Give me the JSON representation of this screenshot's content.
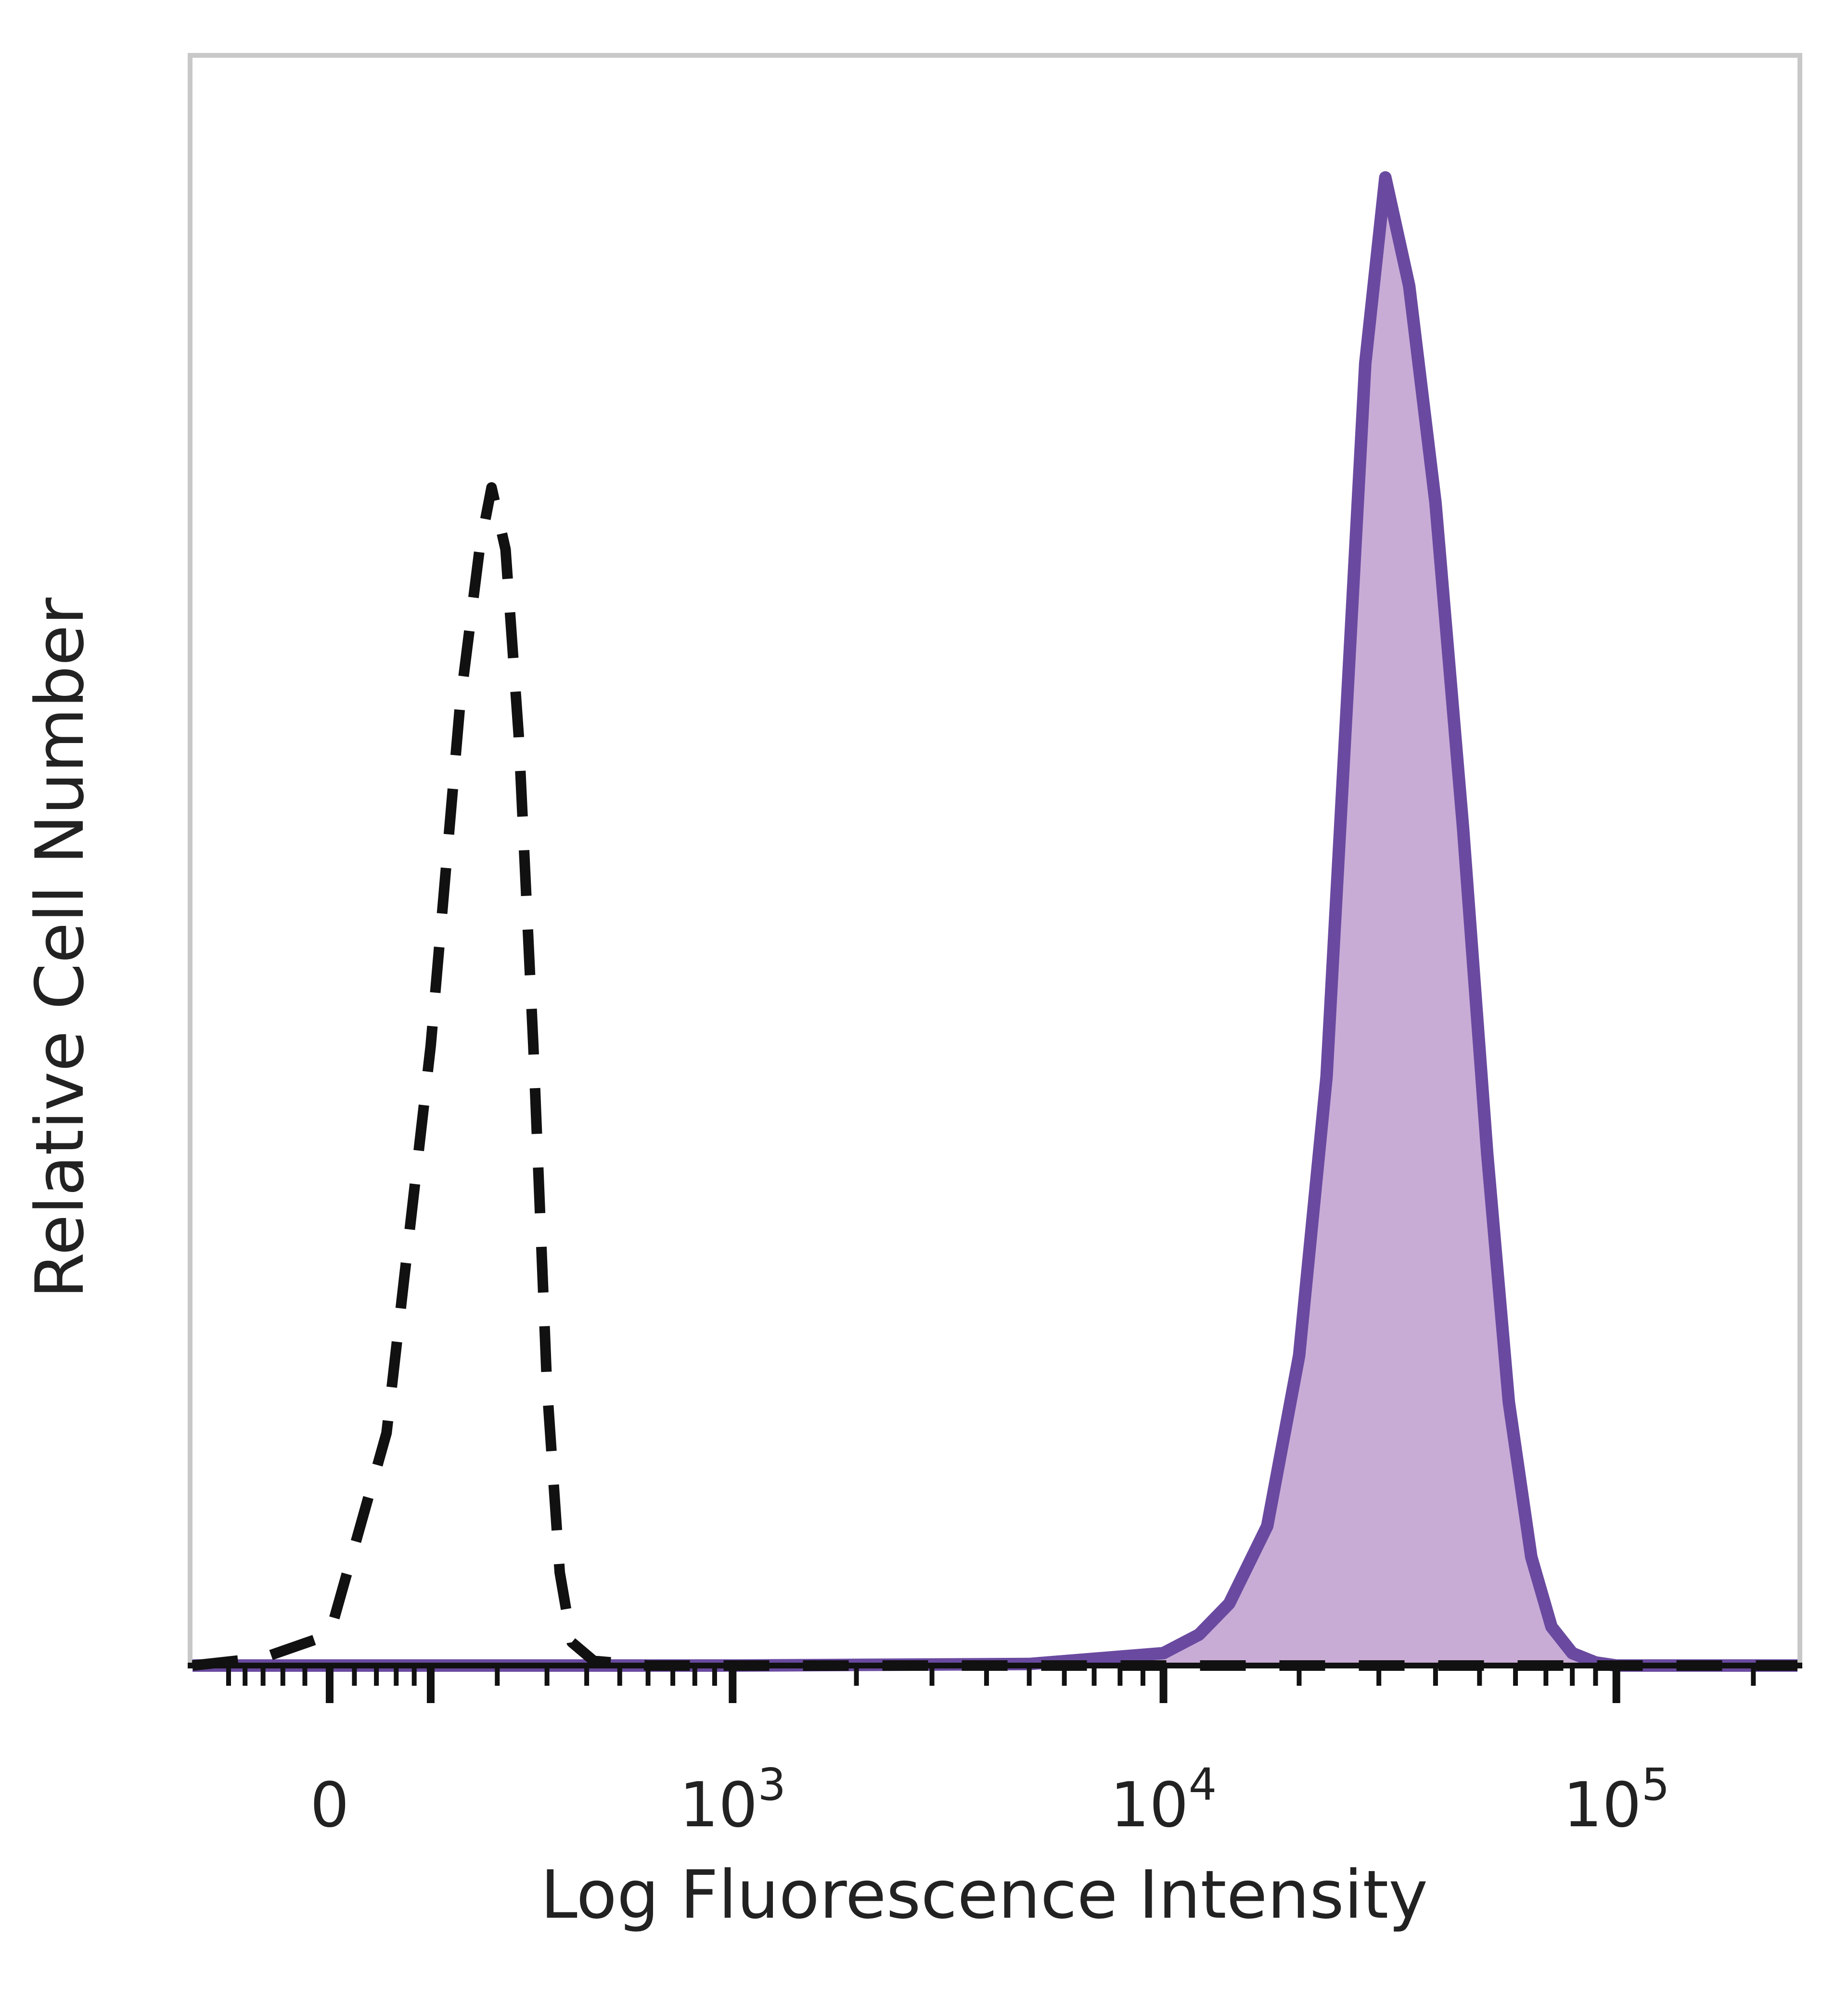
{
  "chart_data": {
    "type": "area",
    "title": "",
    "xlabel": "Log Fluorescence Intensity",
    "ylabel": "Relative Cell Number",
    "x_scale": "biexponential",
    "x_tick_labels": [
      {
        "label": "0",
        "value": 0
      },
      {
        "label": "10",
        "sup": "3",
        "value": 1000
      },
      {
        "label": "10",
        "sup": "4",
        "value": 10000
      },
      {
        "label": "10",
        "sup": "5",
        "value": 100000
      }
    ],
    "xlim": [
      -150,
      250000
    ],
    "ylim": [
      0,
      100
    ],
    "grid": false,
    "legend": "none",
    "series": [
      {
        "style": "dashed",
        "color": "#111111",
        "fill": "none",
        "x": [
          -150,
          -60,
          0,
          50,
          100,
          140,
          170,
          190,
          215,
          240,
          270,
          300,
          330,
          360,
          420,
          600,
          3000,
          10000,
          25000,
          60000,
          250000
        ],
        "y": [
          0,
          0.5,
          2,
          15,
          40,
          62,
          72,
          76,
          72,
          60,
          40,
          18,
          6,
          1.5,
          0.3,
          0,
          0,
          0,
          0,
          0,
          0
        ]
      },
      {
        "style": "solid",
        "color": "#6a4aa0",
        "fill": "#c9acd6",
        "x": [
          -150,
          0,
          1000,
          5000,
          10000,
          12000,
          14000,
          17000,
          20000,
          23000,
          25500,
          28000,
          31000,
          35000,
          40000,
          46000,
          52000,
          58000,
          65000,
          72000,
          80000,
          90000,
          100000,
          250000
        ],
        "y": [
          0,
          0,
          0,
          0.1,
          0.8,
          2,
          4,
          9,
          20,
          38,
          62,
          84,
          96,
          89,
          75,
          54,
          33,
          17,
          7,
          2.5,
          0.8,
          0.2,
          0,
          0
        ]
      }
    ],
    "colors": {
      "frame": "#c8c8c8",
      "axis": "#111111",
      "label": "#222222"
    }
  }
}
